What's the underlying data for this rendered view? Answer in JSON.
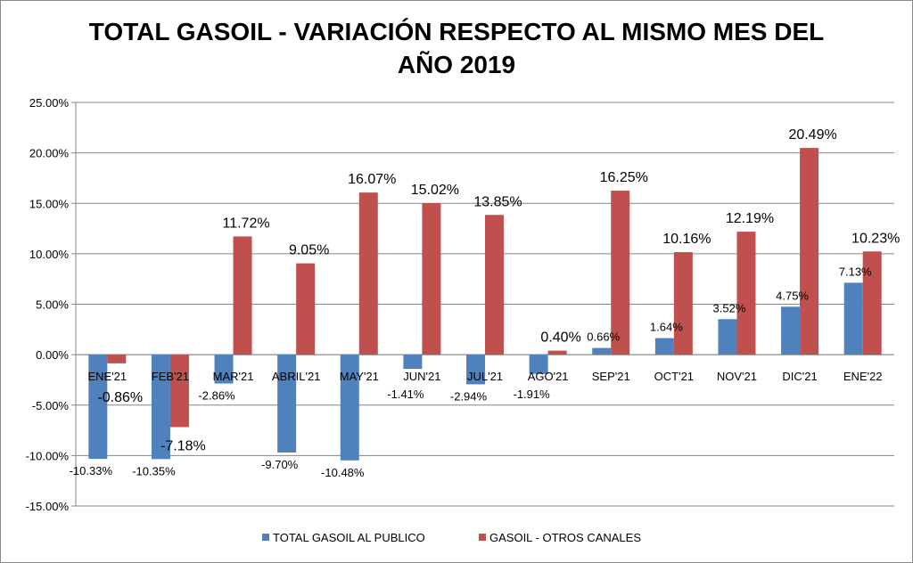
{
  "chart_data": {
    "type": "bar",
    "title": "TOTAL GASOIL - VARIACIÓN RESPECTO AL MISMO MES DEL AÑO 2019",
    "title_lines": [
      "TOTAL GASOIL - VARIACIÓN RESPECTO AL MISMO MES DEL",
      "AÑO 2019"
    ],
    "categories": [
      "ENE'21",
      "FEB'21",
      "MAR'21",
      "ABRIL'21",
      "MAY'21",
      "JUN'21",
      "JUL'21",
      "AGO'21",
      "SEP'21",
      "OCT'21",
      "NOV'21",
      "DIC'21",
      "ENE'22"
    ],
    "series": [
      {
        "name": "TOTAL GASOIL AL PUBLICO",
        "color": "#4F81BD",
        "values": [
          -10.33,
          -10.35,
          -2.86,
          -9.7,
          -10.48,
          -1.41,
          -2.94,
          -1.91,
          0.66,
          1.64,
          3.52,
          4.75,
          7.13
        ]
      },
      {
        "name": "GASOIL - OTROS CANALES",
        "color": "#C0504D",
        "values": [
          -0.86,
          -7.18,
          11.72,
          9.05,
          16.07,
          15.02,
          13.85,
          0.4,
          16.25,
          10.16,
          12.19,
          20.49,
          10.23
        ]
      }
    ],
    "ylim": [
      -15,
      25
    ],
    "yticks": [
      "-15.00%",
      "-10.00%",
      "-5.00%",
      "0.00%",
      "5.00%",
      "10.00%",
      "15.00%",
      "20.00%",
      "25.00%"
    ],
    "ytick_values": [
      -15,
      -10,
      -5,
      0,
      5,
      10,
      15,
      20,
      25
    ],
    "xlabel": "",
    "ylabel": "",
    "grid": true,
    "legend": "bottom"
  }
}
